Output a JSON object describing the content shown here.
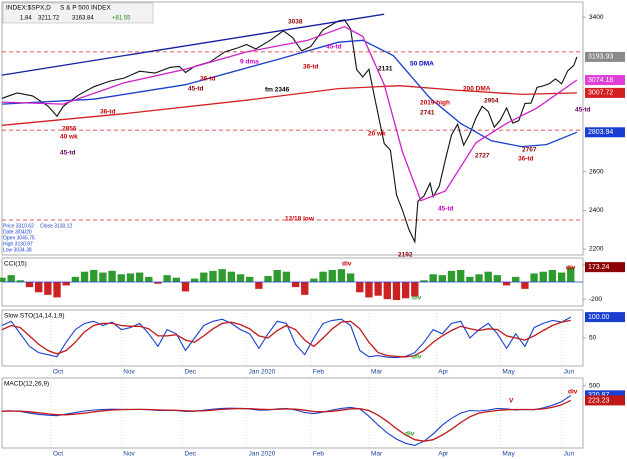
{
  "header": {
    "symbol": "INDEX:$SPX,D",
    "name": "S & P 500 INDEX",
    "readout": [
      "1.84",
      "3211.72",
      "3163.84",
      "+81.55"
    ]
  },
  "info": [
    "Price 3310.62",
    "Date 3/04/20",
    "Open 3045.75",
    "High 3130.97",
    "Low 3034.38",
    "Close 3130.12"
  ],
  "chart_data": [
    {
      "type": "line",
      "xlim": [
        0,
        190
      ],
      "ylim": [
        2169,
        3478
      ],
      "yticks": [
        2200,
        2400,
        2600,
        3400
      ],
      "series": [
        {
          "color": "#111111",
          "x": [
            0,
            5,
            10,
            15,
            18,
            20,
            25,
            30,
            35,
            40,
            45,
            50,
            55,
            58,
            60,
            63,
            68,
            73,
            77,
            80,
            83,
            88,
            92,
            95,
            98,
            101,
            105,
            110,
            112,
            114,
            116,
            118,
            120,
            122,
            125,
            127,
            129,
            131,
            133,
            135,
            136,
            138,
            140,
            141,
            143,
            145,
            147,
            149,
            151,
            153,
            155,
            157,
            159,
            161,
            163,
            165,
            167,
            169,
            171,
            173,
            175,
            177,
            179,
            181,
            183,
            185,
            187,
            188
          ],
          "values": [
            2980,
            3007,
            2992,
            2940,
            2887,
            2938,
            2996,
            3039,
            3067,
            3085,
            3120,
            3110,
            3140,
            3145,
            3113,
            3145,
            3168,
            3221,
            3240,
            3258,
            3235,
            3283,
            3329,
            3295,
            3225,
            3248,
            3334,
            3380,
            3386,
            3338,
            3128,
            3090,
            3130,
            2972,
            2746,
            2711,
            2480,
            2399,
            2304,
            2237,
            2447,
            2475,
            2541,
            2470,
            2526,
            2663,
            2790,
            2846,
            2737,
            2797,
            2878,
            2939,
            2912,
            2830,
            2868,
            2930,
            2852,
            2864,
            2953,
            2955,
            3036,
            3044,
            3056,
            3080,
            3055,
            3122,
            3150,
            3193.93
          ]
        },
        {
          "color": "#d42020",
          "x": [
            0,
            40,
            80,
            110,
            130,
            150,
            170,
            188
          ],
          "values": [
            2840,
            2900,
            2970,
            3030,
            3045,
            3020,
            3000,
            3007.72
          ]
        },
        {
          "color": "#1a3fd0",
          "x": [
            0,
            30,
            60,
            90,
            110,
            118,
            128,
            140,
            150,
            160,
            170,
            178,
            188
          ],
          "values": [
            2950,
            2975,
            3050,
            3180,
            3270,
            3280,
            3200,
            2980,
            2850,
            2760,
            2730,
            2740,
            2803.94
          ]
        },
        {
          "color": "#d020c8",
          "x": [
            0,
            20,
            40,
            60,
            80,
            100,
            112,
            118,
            125,
            131,
            137,
            145,
            155,
            165,
            175,
            188
          ],
          "values": [
            2960,
            2950,
            3060,
            3130,
            3220,
            3280,
            3350,
            3300,
            3050,
            2700,
            2450,
            2500,
            2750,
            2850,
            2930,
            3074.18
          ]
        },
        {
          "color": "#1020a0",
          "x": [
            0,
            125
          ],
          "values": [
            3100,
            3415
          ]
        }
      ],
      "hlines": [
        {
          "value": 3220,
          "color": "#d42020"
        },
        {
          "value": 2815,
          "color": "#d42020"
        },
        {
          "value": 2350,
          "color": "#d42020"
        }
      ],
      "last_labels": [
        {
          "value": 3193.93,
          "label": "3193.93",
          "color": "#8a8a8a"
        },
        {
          "value": 3074.18,
          "label": "3074.18",
          "color": "#e040d8"
        },
        {
          "value": 3007.72,
          "label": "3007.72",
          "color": "#d42020"
        },
        {
          "value": 2803.94,
          "label": "2803.94",
          "color": "#1a3fd0"
        }
      ],
      "annotations": [
        {
          "text": "3038",
          "color": "#8b0000"
        },
        {
          "text": "45-td",
          "color": "#cc00cc"
        },
        {
          "text": "9 dma",
          "color": "#cc00cc"
        },
        {
          "text": "36-td",
          "color": "#cc0000"
        },
        {
          "text": "45-td",
          "color": "#8b0000"
        },
        {
          "text": "36-td",
          "color": "#cc0000"
        },
        {
          "text": "fm 2346",
          "color": "#000000"
        },
        {
          "text": "2131",
          "color": "#000000"
        },
        {
          "text": "50 DMA",
          "color": "#0000cc"
        },
        {
          "text": "200 DMA",
          "color": "#cc0000"
        },
        {
          "text": "2019 high",
          "color": "#cc0000"
        },
        {
          "text": "2741",
          "color": "#8b0000"
        },
        {
          "text": "20 wk",
          "color": "#cc0000"
        },
        {
          "text": "2856",
          "color": "#cc0000"
        },
        {
          "text": "40 wk",
          "color": "#cc0000"
        },
        {
          "text": "45-td",
          "color": "#660066"
        },
        {
          "text": "36-td",
          "color": "#cc0000"
        },
        {
          "text": "2954",
          "color": "#8b0000"
        },
        {
          "text": "2727",
          "color": "#8b0000"
        },
        {
          "text": "2767",
          "color": "#8b0000"
        },
        {
          "text": "36-td",
          "color": "#cc0000"
        },
        {
          "text": "45-td",
          "color": "#cc00cc"
        },
        {
          "text": "45-td",
          "color": "#660066"
        },
        {
          "text": "12/18 low",
          "color": "#cc0000"
        },
        {
          "text": "2192",
          "color": "#8b0000"
        }
      ]
    },
    {
      "type": "bar",
      "label": "CCI(15)",
      "xlim": [
        0,
        190
      ],
      "ylim": [
        -280,
        280
      ],
      "yticks": [
        200,
        -200
      ],
      "colors": [
        "#2e9b2e",
        "#cc2222"
      ],
      "x": [
        0,
        3,
        6,
        9,
        12,
        15,
        18,
        21,
        24,
        27,
        30,
        33,
        36,
        39,
        42,
        45,
        48,
        51,
        54,
        57,
        60,
        63,
        66,
        69,
        72,
        75,
        78,
        81,
        84,
        87,
        90,
        93,
        96,
        99,
        102,
        105,
        108,
        111,
        114,
        117,
        120,
        123,
        126,
        129,
        132,
        135,
        138,
        141,
        144,
        147,
        150,
        153,
        156,
        159,
        162,
        165,
        168,
        171,
        174,
        177,
        180,
        183,
        186
      ],
      "values": [
        50,
        80,
        20,
        -60,
        -120,
        -150,
        -180,
        -40,
        60,
        120,
        140,
        110,
        130,
        90,
        100,
        110,
        60,
        -20,
        80,
        50,
        -110,
        40,
        110,
        130,
        150,
        120,
        90,
        60,
        -80,
        70,
        140,
        120,
        -60,
        -150,
        40,
        120,
        140,
        150,
        100,
        -120,
        -180,
        -160,
        -200,
        -210,
        -190,
        -170,
        20,
        90,
        80,
        130,
        140,
        60,
        90,
        120,
        80,
        -40,
        60,
        -80,
        100,
        120,
        140,
        110,
        173.24
      ],
      "last_labels": [
        {
          "value": 173.24,
          "label": "173.24",
          "color": "#8b0000"
        }
      ],
      "annotations": [
        {
          "text": "div",
          "color": "#cc0000"
        },
        {
          "text": "div",
          "color": "#2e9b2e"
        },
        {
          "text": "div",
          "color": "#cc0000"
        }
      ]
    },
    {
      "type": "line",
      "label": "Slow STO(14,14,1,9)",
      "xlim": [
        0,
        190
      ],
      "ylim": [
        -17,
        117
      ],
      "yticks": [
        50
      ],
      "x": [
        0,
        3,
        6,
        9,
        12,
        15,
        18,
        21,
        24,
        27,
        30,
        33,
        36,
        39,
        42,
        45,
        48,
        51,
        54,
        57,
        60,
        63,
        66,
        69,
        72,
        75,
        78,
        81,
        84,
        87,
        90,
        93,
        96,
        99,
        102,
        105,
        108,
        111,
        114,
        117,
        120,
        123,
        126,
        129,
        132,
        135,
        138,
        141,
        144,
        147,
        150,
        153,
        156,
        159,
        162,
        165,
        168,
        171,
        174,
        177,
        180,
        183,
        186
      ],
      "xticks": [
        {
          "value": 16,
          "label": "Oct"
        },
        {
          "value": 39,
          "label": "Nov"
        },
        {
          "value": 59,
          "label": "Dec"
        },
        {
          "value": 80,
          "label": "Jan 2020"
        },
        {
          "value": 101,
          "label": "Feb"
        },
        {
          "value": 120,
          "label": "Mar"
        },
        {
          "value": 142,
          "label": "Apr"
        },
        {
          "value": 163,
          "label": "May"
        },
        {
          "value": 183,
          "label": "Jun"
        }
      ],
      "series": [
        {
          "color": "#1a3fd0",
          "values": [
            80,
            90,
            60,
            30,
            15,
            10,
            5,
            40,
            70,
            85,
            90,
            80,
            88,
            70,
            75,
            85,
            60,
            30,
            70,
            60,
            20,
            50,
            80,
            90,
            95,
            85,
            70,
            60,
            25,
            60,
            90,
            85,
            35,
            10,
            50,
            85,
            92,
            95,
            80,
            20,
            5,
            8,
            4,
            3,
            6,
            15,
            40,
            70,
            60,
            85,
            90,
            50,
            70,
            85,
            60,
            25,
            60,
            30,
            75,
            85,
            92,
            88,
            100
          ]
        },
        {
          "color": "#c01818",
          "values": [
            70,
            80,
            75,
            55,
            35,
            20,
            12,
            20,
            40,
            65,
            80,
            85,
            85,
            80,
            78,
            78,
            72,
            55,
            55,
            58,
            45,
            40,
            55,
            72,
            85,
            88,
            82,
            72,
            55,
            50,
            68,
            80,
            70,
            45,
            30,
            50,
            72,
            88,
            90,
            72,
            40,
            15,
            8,
            6,
            5,
            8,
            20,
            40,
            55,
            68,
            78,
            72,
            68,
            72,
            70,
            55,
            50,
            45,
            55,
            68,
            80,
            88,
            92
          ]
        }
      ],
      "last_labels": [
        {
          "value": 100,
          "label": "100.00",
          "color": "#1a3fd0"
        }
      ],
      "annotations": [
        {
          "text": "div",
          "color": "#2e9b2e"
        }
      ]
    },
    {
      "type": "line",
      "label": "MACD(12,26,9)",
      "xlim": [
        0,
        190
      ],
      "ylim": [
        -690,
        654
      ],
      "yticks": [
        500
      ],
      "x": [
        0,
        3,
        6,
        9,
        12,
        15,
        18,
        21,
        24,
        27,
        30,
        33,
        36,
        39,
        42,
        45,
        48,
        51,
        54,
        57,
        60,
        63,
        66,
        69,
        72,
        75,
        78,
        81,
        84,
        87,
        90,
        93,
        96,
        99,
        102,
        105,
        108,
        111,
        114,
        117,
        120,
        123,
        126,
        129,
        132,
        135,
        138,
        141,
        144,
        147,
        150,
        153,
        156,
        159,
        162,
        165,
        168,
        171,
        174,
        177,
        180,
        183,
        186
      ],
      "xticks": [
        {
          "value": 16,
          "label": "Oct"
        },
        {
          "value": 39,
          "label": "Nov"
        },
        {
          "value": 59,
          "label": "Dec"
        },
        {
          "value": 80,
          "label": "Jan 2020"
        },
        {
          "value": 101,
          "label": "Feb"
        },
        {
          "value": 120,
          "label": "Mar"
        },
        {
          "value": 142,
          "label": "Apr"
        },
        {
          "value": 163,
          "label": "May"
        },
        {
          "value": 183,
          "label": "Jun"
        }
      ],
      "series": [
        {
          "color": "#1a3fd0",
          "values": [
            20,
            25,
            10,
            -20,
            -45,
            -60,
            -70,
            -40,
            -10,
            20,
            40,
            50,
            55,
            52,
            50,
            52,
            45,
            30,
            32,
            30,
            10,
            15,
            35,
            55,
            70,
            75,
            70,
            60,
            35,
            40,
            60,
            70,
            40,
            -10,
            -30,
            0,
            40,
            70,
            90,
            60,
            -80,
            -250,
            -400,
            -520,
            -600,
            -640,
            -560,
            -420,
            -250,
            -120,
            -20,
            30,
            20,
            40,
            70,
            60,
            40,
            50,
            45,
            80,
            130,
            200,
            320.87
          ]
        },
        {
          "color": "#c01818",
          "values": [
            15,
            20,
            18,
            5,
            -15,
            -35,
            -50,
            -52,
            -40,
            -20,
            5,
            25,
            40,
            48,
            50,
            51,
            50,
            42,
            38,
            34,
            25,
            20,
            25,
            38,
            52,
            63,
            68,
            66,
            55,
            50,
            52,
            60,
            55,
            35,
            10,
            5,
            15,
            35,
            60,
            65,
            30,
            -60,
            -180,
            -320,
            -440,
            -530,
            -560,
            -530,
            -440,
            -330,
            -200,
            -90,
            -20,
            10,
            30,
            45,
            50,
            50,
            50,
            60,
            90,
            140,
            223.23
          ]
        }
      ],
      "last_labels": [
        {
          "value": 320.87,
          "label": "320.87",
          "color": "#1a3fd0"
        },
        {
          "value": 223.23,
          "label": "223.23",
          "color": "#c01818"
        }
      ],
      "annotations": [
        {
          "text": "div",
          "color": "#2e9b2e"
        },
        {
          "text": "div",
          "color": "#cc0000"
        },
        {
          "text": "V",
          "color": "#cc0000"
        }
      ]
    }
  ]
}
